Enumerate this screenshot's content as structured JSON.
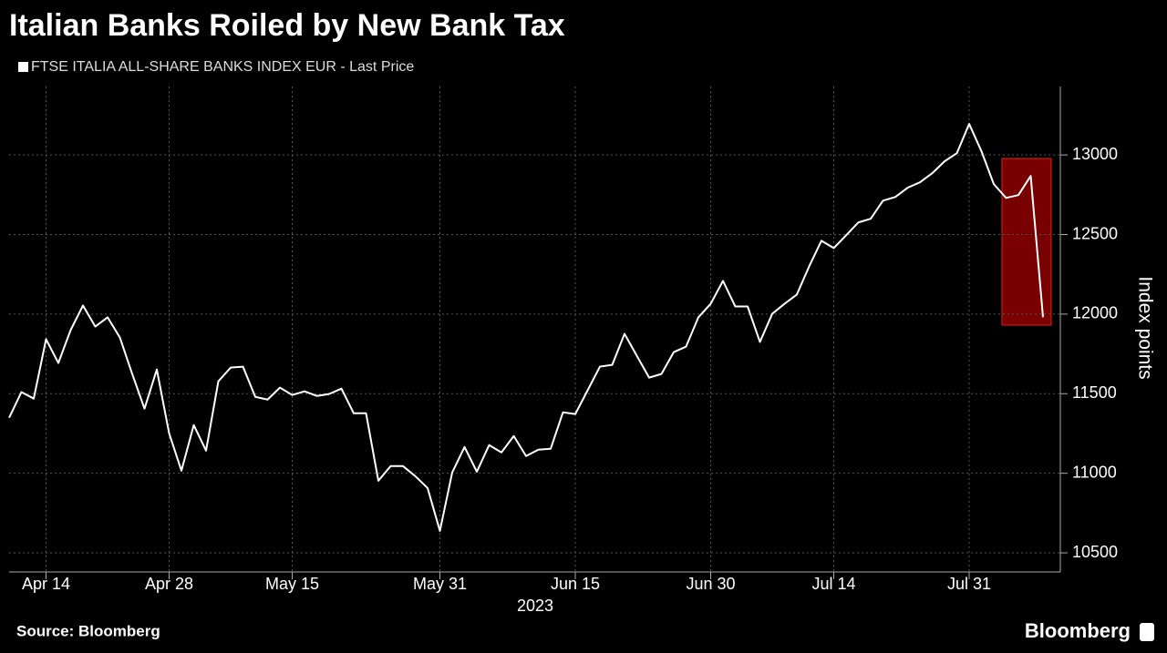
{
  "chart_data": {
    "type": "line",
    "title": "Italian Banks Roiled by New Bank Tax",
    "series": [
      {
        "name": "FTSE ITALIA ALL-SHARE BANKS INDEX EUR - Last Price",
        "color": "#ffffff",
        "values": [
          11349,
          11510,
          11469,
          11842,
          11693,
          11900,
          12054,
          11922,
          11980,
          11853,
          11624,
          11406,
          11652,
          11251,
          11016,
          11303,
          11142,
          11578,
          11664,
          11670,
          11480,
          11463,
          11538,
          11492,
          11515,
          11486,
          11498,
          11532,
          11377,
          11377,
          10953,
          11045,
          11045,
          10982,
          10907,
          10638,
          11005,
          11165,
          11010,
          11177,
          11131,
          11234,
          11108,
          11148,
          11154,
          11383,
          11372,
          11521,
          11670,
          11681,
          11876,
          11738,
          11601,
          11624,
          11761,
          11796,
          11980,
          12065,
          12209,
          12048,
          12048,
          11825,
          12002,
          12065,
          12123,
          12300,
          12461,
          12415,
          12495,
          12576,
          12599,
          12713,
          12736,
          12794,
          12828,
          12885,
          12960,
          13011,
          13195,
          13023,
          12817,
          12730,
          12748,
          12868,
          11980
        ]
      }
    ],
    "categories": [
      "2023-04-11",
      "2023-04-12",
      "2023-04-13",
      "2023-04-14",
      "2023-04-17",
      "2023-04-18",
      "2023-04-19",
      "2023-04-20",
      "2023-04-21",
      "2023-04-24",
      "2023-04-25",
      "2023-04-26",
      "2023-04-27",
      "2023-04-28",
      "2023-05-02",
      "2023-05-03",
      "2023-05-04",
      "2023-05-05",
      "2023-05-08",
      "2023-05-09",
      "2023-05-10",
      "2023-05-11",
      "2023-05-12",
      "2023-05-15",
      "2023-05-16",
      "2023-05-17",
      "2023-05-18",
      "2023-05-19",
      "2023-05-22",
      "2023-05-23",
      "2023-05-24",
      "2023-05-25",
      "2023-05-26",
      "2023-05-29",
      "2023-05-30",
      "2023-05-31",
      "2023-06-01",
      "2023-06-02",
      "2023-06-05",
      "2023-06-06",
      "2023-06-07",
      "2023-06-08",
      "2023-06-09",
      "2023-06-12",
      "2023-06-13",
      "2023-06-14",
      "2023-06-15",
      "2023-06-16",
      "2023-06-19",
      "2023-06-20",
      "2023-06-21",
      "2023-06-22",
      "2023-06-23",
      "2023-06-26",
      "2023-06-27",
      "2023-06-28",
      "2023-06-29",
      "2023-06-30",
      "2023-07-03",
      "2023-07-04",
      "2023-07-05",
      "2023-07-06",
      "2023-07-07",
      "2023-07-10",
      "2023-07-11",
      "2023-07-12",
      "2023-07-13",
      "2023-07-14",
      "2023-07-17",
      "2023-07-18",
      "2023-07-19",
      "2023-07-20",
      "2023-07-21",
      "2023-07-24",
      "2023-07-25",
      "2023-07-26",
      "2023-07-27",
      "2023-07-28",
      "2023-07-31",
      "2023-08-01",
      "2023-08-02",
      "2023-08-03",
      "2023-08-04",
      "2023-08-07",
      "2023-08-08"
    ],
    "xticks": [
      {
        "value": "2023-04-14",
        "label": "Apr 14"
      },
      {
        "value": "2023-04-28",
        "label": "Apr 28"
      },
      {
        "value": "2023-05-15",
        "label": "May 15"
      },
      {
        "value": "2023-05-31",
        "label": "May 31"
      },
      {
        "value": "2023-06-15",
        "label": "Jun 15"
      },
      {
        "value": "2023-06-30",
        "label": "Jun 30"
      },
      {
        "value": "2023-07-14",
        "label": "Jul 14"
      },
      {
        "value": "2023-07-31",
        "label": "Jul 31"
      }
    ],
    "year_label": "2023",
    "ylabel": "Index points",
    "ylim": [
      10380,
      13430
    ],
    "yticks": [
      10500,
      11000,
      11500,
      12000,
      12500,
      13000
    ],
    "grid": true,
    "source": "Source: Bloomberg",
    "brand": "Bloomberg"
  }
}
